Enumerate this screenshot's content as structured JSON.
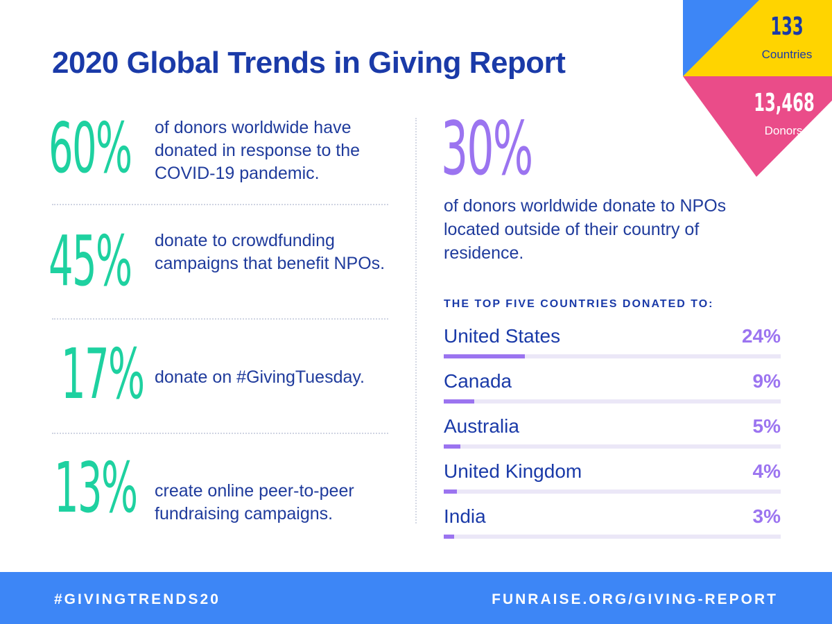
{
  "header": {
    "title": "2020 Global Trends in Giving Report"
  },
  "badge": {
    "countries_value": "133",
    "countries_label": "Countries",
    "donors_value": "13,468",
    "donors_label": "Donors",
    "colors": {
      "blue": "#3d86f6",
      "yellow": "#ffd400",
      "pink": "#ea4c89"
    }
  },
  "stats": [
    {
      "percent": "60%",
      "text": "of donors worldwide have donated in response to the COVID-19 pandemic."
    },
    {
      "percent": "45%",
      "text": "donate to crowdfunding campaigns that benefit NPOs."
    },
    {
      "percent": "17%",
      "text": "donate on #GivingTuesday."
    },
    {
      "percent": "13%",
      "text": "create online peer-to-peer fundraising campaigns."
    }
  ],
  "highlight": {
    "percent": "30%",
    "text": "of donors worldwide donate to NPOs located outside of their country of residence."
  },
  "chart_data": {
    "type": "bar",
    "title": "THE TOP FIVE COUNTRIES DONATED TO:",
    "categories": [
      "United States",
      "Canada",
      "Australia",
      "United Kingdom",
      "India"
    ],
    "values": [
      24,
      9,
      5,
      4,
      3
    ],
    "labels": [
      "24%",
      "9%",
      "5%",
      "4%",
      "3%"
    ],
    "xlim": [
      0,
      100
    ],
    "orientation": "horizontal"
  },
  "colors": {
    "green": "#1ed1a0",
    "purple": "#9b74f0",
    "navy": "#1a3aa8",
    "footer": "#3d86f6"
  },
  "footer": {
    "hashtag": "#GIVINGTRENDS20",
    "url": "FUNRAISE.ORG/GIVING-REPORT"
  }
}
